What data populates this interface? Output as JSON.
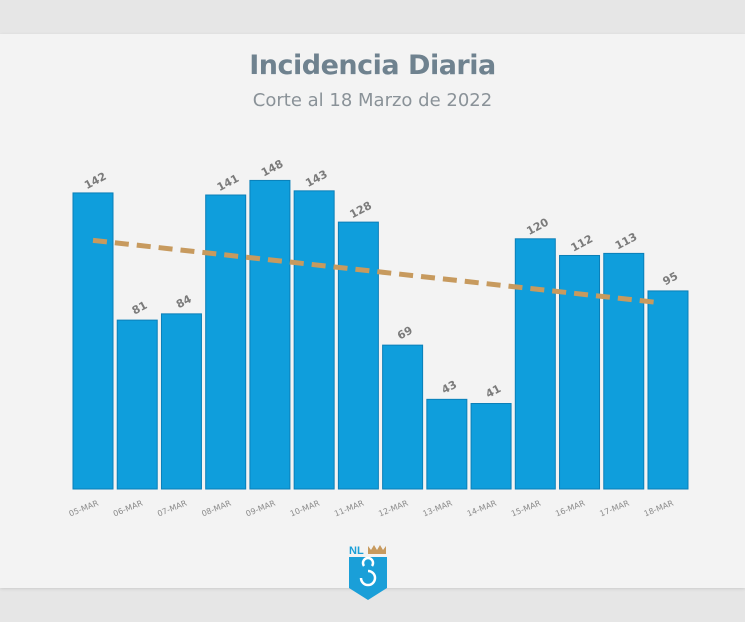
{
  "chart_data": {
    "type": "bar",
    "title": "Incidencia Diaria",
    "subtitle": "Corte al 18 Marzo de 2022",
    "categories": [
      "05-MAR",
      "06-MAR",
      "07-MAR",
      "08-MAR",
      "09-MAR",
      "10-MAR",
      "11-MAR",
      "12-MAR",
      "13-MAR",
      "14-MAR",
      "15-MAR",
      "16-MAR",
      "17-MAR",
      "18-MAR"
    ],
    "values": [
      142,
      81,
      84,
      141,
      148,
      143,
      128,
      69,
      43,
      41,
      120,
      112,
      113,
      95
    ],
    "data_labels": true,
    "trendline": "linear",
    "xlabel": "",
    "ylabel": "",
    "ylim": [
      0,
      150
    ],
    "grid": false,
    "colors": {
      "bar": "#0f9edc",
      "bar_border": "#0a7fb8",
      "trend": "#c79a5e",
      "label": "#7b7b7b"
    }
  },
  "logo": {
    "text": "NL"
  }
}
